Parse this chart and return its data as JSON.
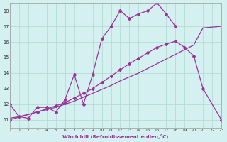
{
  "xlabel": "Windchill (Refroidissement éolien,°C)",
  "bg_color": "#d4f0f0",
  "line_color": "#993399",
  "grid_color": "#b0d8d0",
  "xlim": [
    0,
    23
  ],
  "ylim": [
    10.5,
    18.5
  ],
  "xticks": [
    0,
    1,
    2,
    3,
    4,
    5,
    6,
    7,
    8,
    9,
    10,
    11,
    12,
    13,
    14,
    15,
    16,
    17,
    18,
    19,
    20,
    21,
    22,
    23
  ],
  "yticks": [
    11,
    12,
    13,
    14,
    15,
    16,
    17,
    18
  ],
  "line1_x": [
    0,
    1,
    2,
    3,
    4,
    5,
    6,
    7,
    8,
    9,
    10,
    11,
    12,
    13,
    14,
    15,
    16,
    17,
    18
  ],
  "line1_y": [
    12.0,
    11.2,
    11.1,
    11.8,
    11.8,
    11.5,
    12.3,
    13.9,
    12.0,
    13.9,
    16.2,
    17.0,
    18.0,
    17.5,
    17.8,
    18.0,
    18.5,
    17.8,
    17.0
  ],
  "line2_x": [
    0,
    1,
    2,
    3,
    4,
    5,
    6,
    7,
    8,
    9,
    10,
    11,
    12,
    13,
    14,
    15,
    16,
    17,
    18,
    19,
    20,
    21,
    23
  ],
  "line2_y": [
    11.1,
    11.2,
    11.35,
    11.5,
    11.65,
    11.8,
    12.0,
    12.2,
    12.45,
    12.7,
    12.95,
    13.2,
    13.5,
    13.75,
    14.0,
    14.3,
    14.6,
    14.9,
    15.2,
    15.5,
    15.8,
    16.9,
    17.0
  ],
  "line3_x": [
    0,
    3,
    4,
    5,
    6,
    7,
    8,
    9,
    10,
    11,
    12,
    13,
    14,
    15,
    16,
    17,
    18,
    19,
    20,
    21,
    23
  ],
  "line3_y": [
    11.0,
    11.5,
    11.7,
    11.9,
    12.1,
    12.4,
    12.7,
    13.0,
    13.4,
    13.8,
    14.2,
    14.6,
    14.95,
    15.3,
    15.65,
    15.85,
    16.05,
    15.65,
    15.1,
    13.0,
    11.0
  ]
}
